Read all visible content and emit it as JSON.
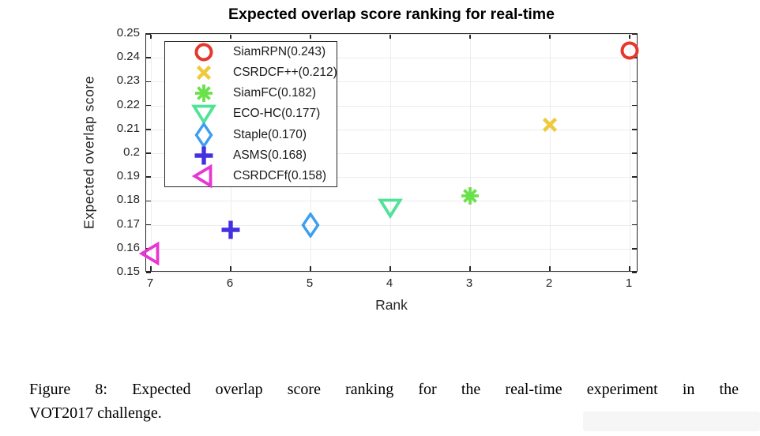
{
  "figure": {
    "caption_line1": "Figure 8: Expected overlap score ranking for the real-time experiment in the",
    "caption_line2": "VOT2017 challenge."
  },
  "chart_data": {
    "type": "scatter",
    "title": "Expected overlap score ranking for real-time",
    "xlabel": "Rank",
    "ylabel": "Expected overlap score",
    "x_ticks": [
      7,
      6,
      5,
      4,
      3,
      2,
      1
    ],
    "x_axis_reversed": true,
    "xlim_note": "x axis runs from rank 7 (left) to rank 1 (right)",
    "ylim": [
      0.15,
      0.25
    ],
    "y_ticks": [
      0.15,
      0.16,
      0.17,
      0.18,
      0.19,
      0.2,
      0.21,
      0.22,
      0.23,
      0.24,
      0.25
    ],
    "y_tick_labels": [
      "0.15",
      "0.16",
      "0.17",
      "0.18",
      "0.19",
      "0.2",
      "0.21",
      "0.22",
      "0.23",
      "0.24",
      "0.25"
    ],
    "grid": true,
    "legend_position": "top-left",
    "axis_color": "#262626",
    "grid_color": "#ececec",
    "series": [
      {
        "name": "SiamRPN",
        "rank": 1,
        "score": 0.243,
        "marker": "circle",
        "color": "#e7372c",
        "legend_label": "SiamRPN(0.243)"
      },
      {
        "name": "CSRDCF++",
        "rank": 2,
        "score": 0.212,
        "marker": "x",
        "color": "#efc93c",
        "legend_label": "CSRDCF++(0.212)"
      },
      {
        "name": "SiamFC",
        "rank": 3,
        "score": 0.182,
        "marker": "asterisk",
        "color": "#69e24a",
        "legend_label": "SiamFC(0.182)"
      },
      {
        "name": "ECO-HC",
        "rank": 4,
        "score": 0.177,
        "marker": "triangle-down",
        "color": "#50e297",
        "legend_label": "ECO-HC(0.177)"
      },
      {
        "name": "Staple",
        "rank": 5,
        "score": 0.17,
        "marker": "diamond",
        "color": "#3b9ff0",
        "legend_label": "Staple(0.170)"
      },
      {
        "name": "ASMS",
        "rank": 6,
        "score": 0.168,
        "marker": "plus",
        "color": "#4430e0",
        "legend_label": "ASMS(0.168)"
      },
      {
        "name": "CSRDCFf",
        "rank": 7,
        "score": 0.158,
        "marker": "triangle-left",
        "color": "#e637d2",
        "legend_label": "CSRDCFf(0.158)"
      }
    ]
  }
}
